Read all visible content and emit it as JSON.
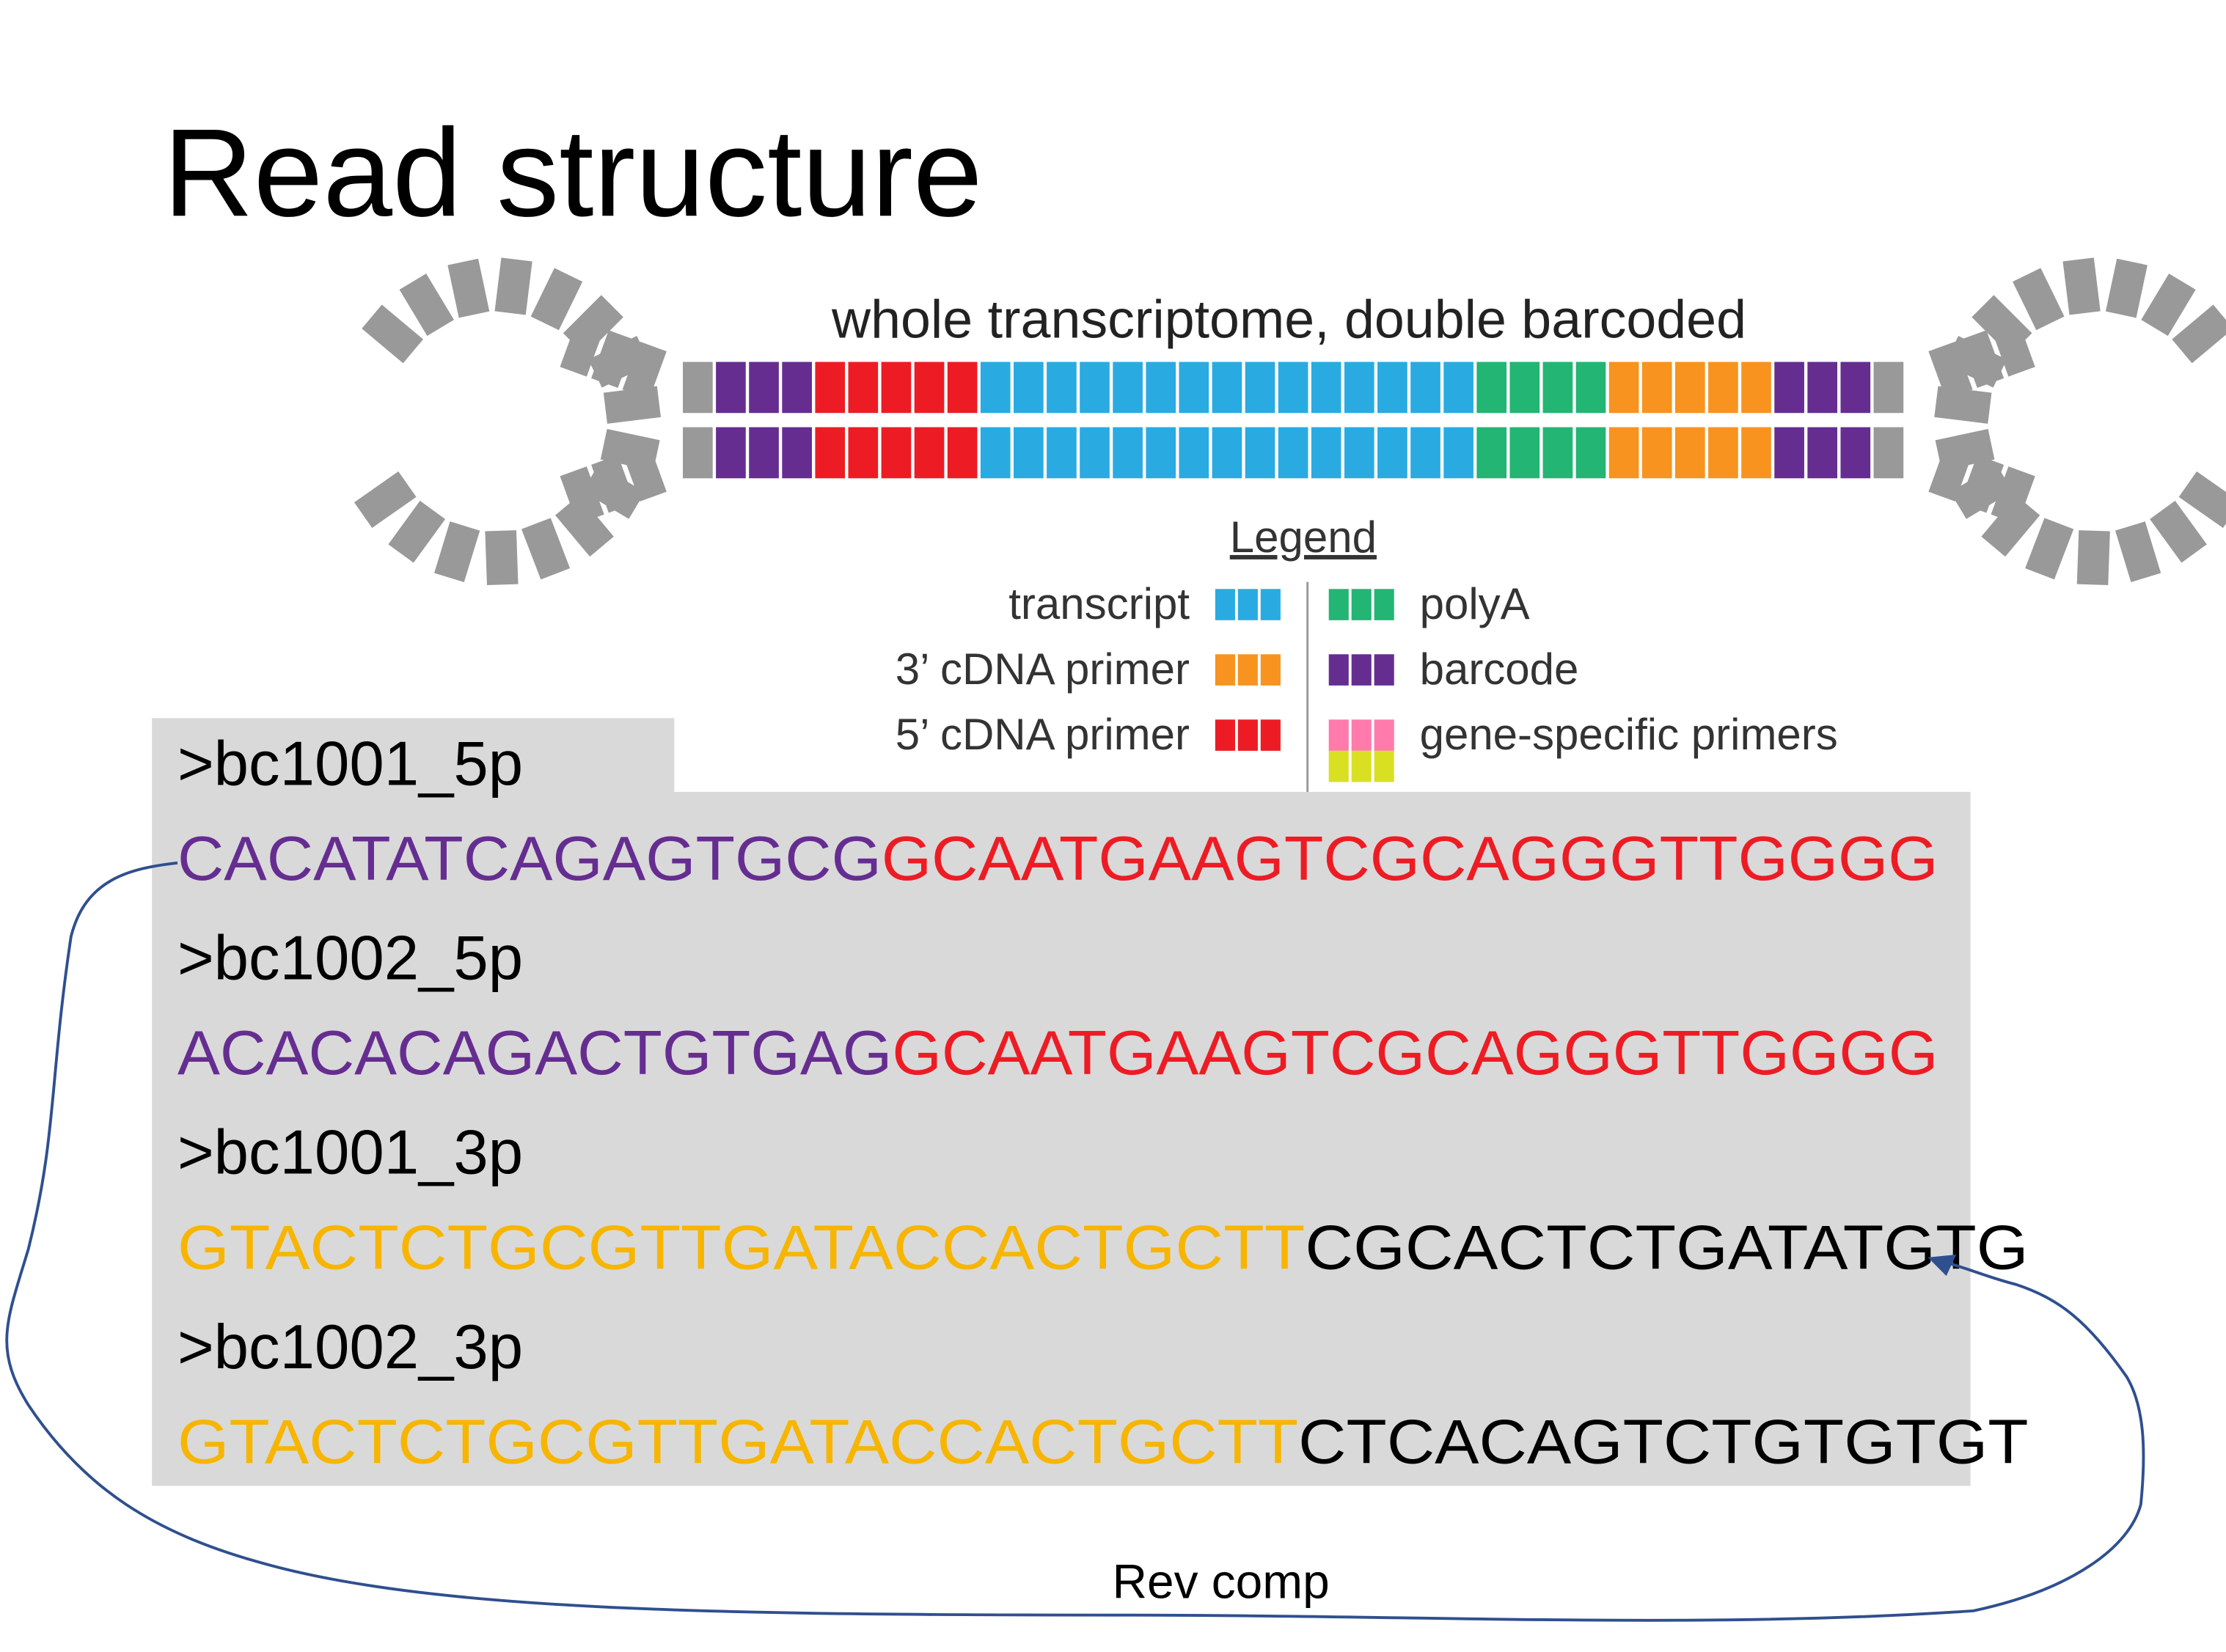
{
  "title": "Read structure",
  "diagram": {
    "label": "whole transcriptome, double barcoded",
    "legend": {
      "title": "Legend",
      "items": [
        "transcript",
        "3’ cDNA primer",
        "5’ cDNA primer",
        "polyA",
        "barcode",
        "gene-specific primers"
      ]
    }
  },
  "sequences": [
    {
      "header": ">bc1001_5p",
      "segments": [
        "CACATATCAGAGTGCG",
        "GCAATGAAGTCGCAGGGTTGGGG"
      ]
    },
    {
      "header": ">bc1002_5p",
      "segments": [
        "ACACACAGACTGTGAG",
        "GCAATGAAGTCGCAGGGTTGGGG"
      ]
    },
    {
      "header": ">bc1001_3p",
      "segments": [
        "GTACTCTGCGTTGATACCACTGCTT",
        "CGCACTCTGATATGTG"
      ]
    },
    {
      "header": ">bc1002_3p",
      "segments": [
        "GTACTCTGCGTTGATACCACTGCTT",
        "CTCACAGTCTGTGTGT"
      ]
    }
  ],
  "annotation": "Rev comp"
}
